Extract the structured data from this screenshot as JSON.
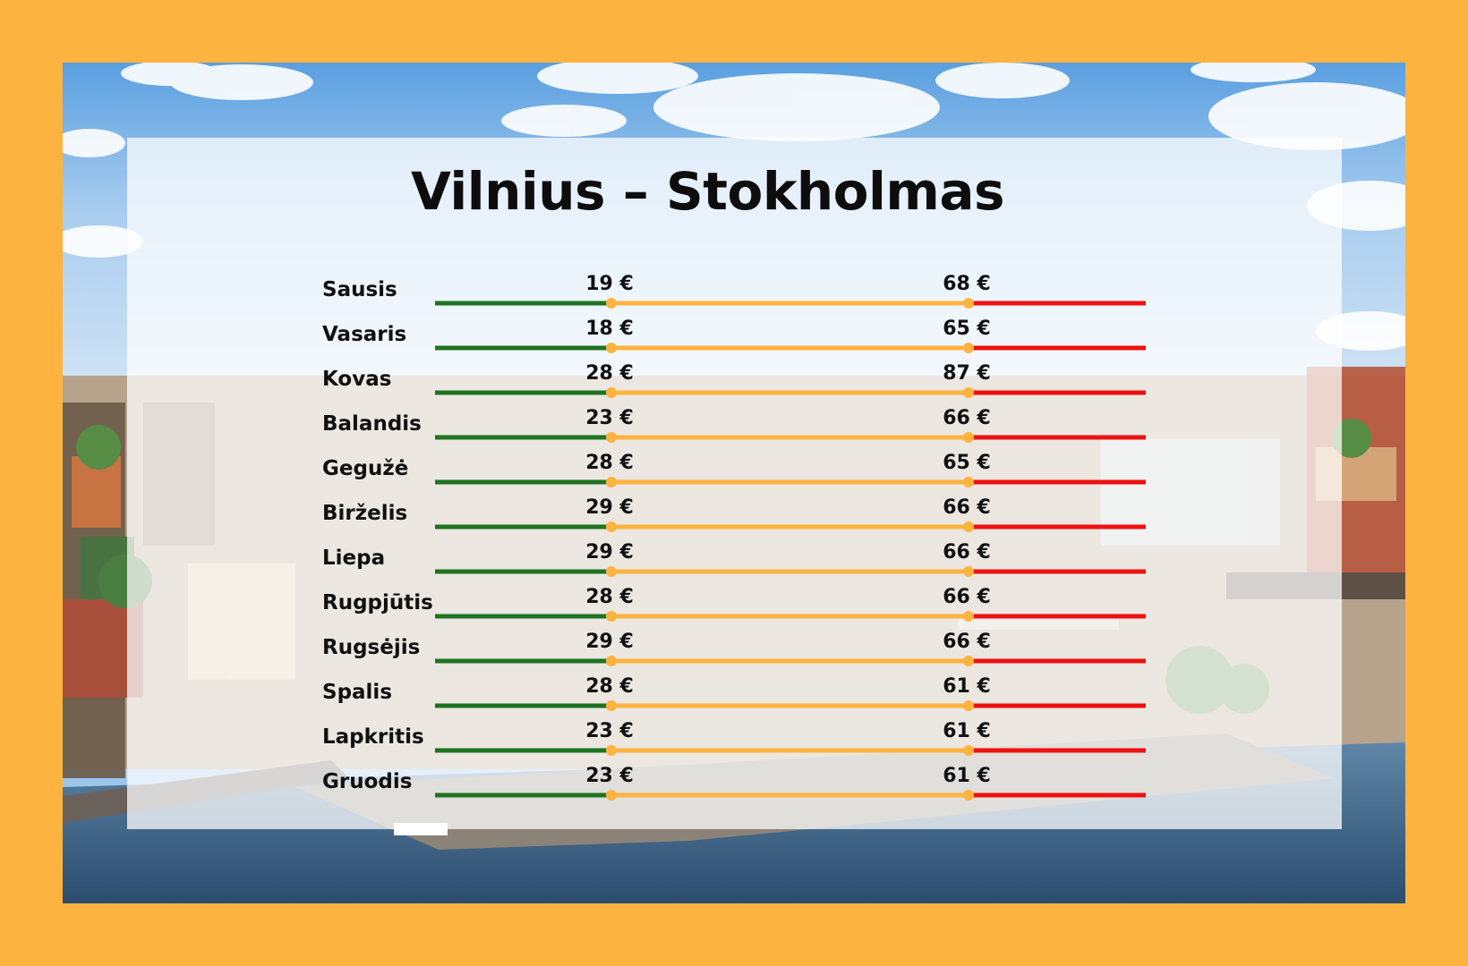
{
  "title": "Vilnius – Stokholmas",
  "colors": {
    "background": "#FDB33F",
    "low_segment": "#1E7320",
    "mid_segment": "#FDB33F",
    "high_segment": "#EE1111",
    "marker": "#FDB33F"
  },
  "chart_data": {
    "type": "range",
    "title": "Vilnius – Stokholmas",
    "currency": "€",
    "categories": [
      "Sausis",
      "Vasaris",
      "Kovas",
      "Balandis",
      "Gegužė",
      "Birželis",
      "Liepa",
      "Rugpjūtis",
      "Rugsėjis",
      "Spalis",
      "Lapkritis",
      "Gruodis"
    ],
    "series": [
      {
        "values": [
          19,
          18,
          28,
          23,
          28,
          29,
          29,
          28,
          29,
          28,
          23,
          23
        ]
      },
      {
        "values": [
          68,
          65,
          87,
          66,
          65,
          66,
          66,
          66,
          66,
          61,
          61,
          61
        ]
      }
    ],
    "labels": {
      "min": [
        "19 €",
        "18 €",
        "28 €",
        "23 €",
        "28 €",
        "29 €",
        "29 €",
        "28 €",
        "29 €",
        "28 €",
        "23 €",
        "23 €"
      ],
      "max": [
        "68 €",
        "65 €",
        "87 €",
        "66 €",
        "65 €",
        "66 €",
        "66 €",
        "66 €",
        "66 €",
        "61 €",
        "61 €",
        "61 €"
      ]
    }
  }
}
